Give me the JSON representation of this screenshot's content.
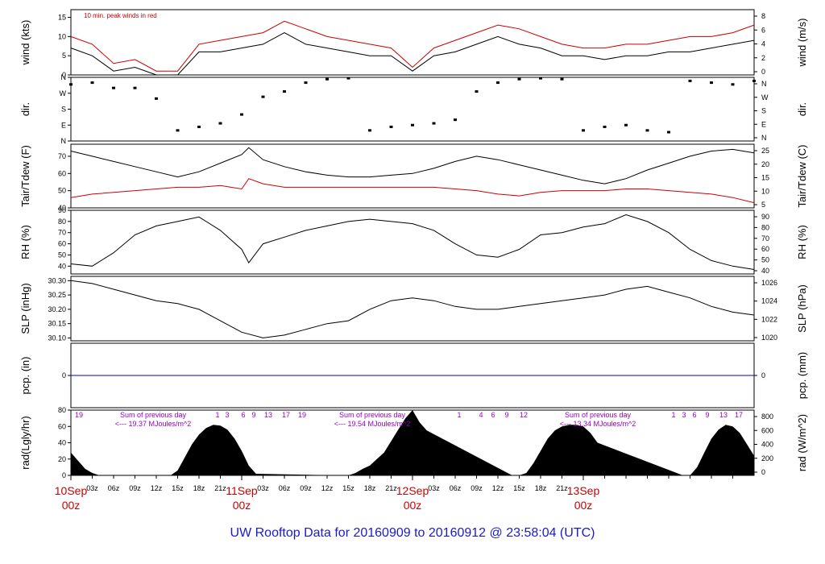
{
  "chart_data": {
    "type": "line",
    "title": "UW Rooftop Data for 20160909  to  20160912 @ 23:58:04  (UTC)",
    "x_ticks": [
      "03z",
      "06z",
      "09z",
      "12z",
      "15z",
      "18z",
      "21z",
      "03z",
      "06z",
      "09z",
      "12z",
      "15z",
      "18z",
      "21z",
      "03z",
      "06z",
      "09z",
      "12z",
      "15z",
      "18z",
      "21z"
    ],
    "date_labels": [
      {
        "day": "10Sep",
        "hour": "00z"
      },
      {
        "day": "11Sep",
        "hour": "00z"
      },
      {
        "day": "12Sep",
        "hour": "00z"
      },
      {
        "day": "13Sep",
        "hour": "00z"
      }
    ],
    "x_range_hours": [
      0,
      96
    ],
    "panels": [
      {
        "id": "wind",
        "ylabel_left": "wind (kts)",
        "ylabel_right": "wind (m/s)",
        "ylim": [
          0,
          17
        ],
        "left_ticks": [
          "0",
          "5",
          "10",
          "15"
        ],
        "right_ticks": [
          "0",
          "2",
          "4",
          "6",
          "8"
        ],
        "note": "10 min. peak winds in red",
        "series": [
          {
            "hours": [
              0,
              3,
              6,
              9,
              12,
              15,
              18,
              21,
              24,
              27,
              30,
              33,
              36,
              39,
              42,
              45,
              48,
              51,
              54,
              57,
              60,
              63,
              66,
              69,
              72,
              75,
              78,
              81,
              84,
              87,
              90,
              93,
              96
            ],
            "values": [
              7,
              5,
              1,
              2,
              0,
              0,
              6,
              6,
              7,
              8,
              11,
              8,
              7,
              6,
              5,
              5,
              1,
              5,
              6,
              8,
              10,
              8,
              7,
              5,
              5,
              4,
              5,
              5,
              6,
              6,
              7,
              8,
              9
            ],
            "color": "#000000"
          },
          {
            "hours": [
              0,
              3,
              6,
              9,
              12,
              15,
              18,
              21,
              24,
              27,
              30,
              33,
              36,
              39,
              42,
              45,
              48,
              51,
              54,
              57,
              60,
              63,
              66,
              69,
              72,
              75,
              78,
              81,
              84,
              87,
              90,
              93,
              96
            ],
            "values": [
              10,
              8,
              3,
              4,
              1,
              1,
              8,
              9,
              10,
              11,
              14,
              12,
              10,
              9,
              8,
              7,
              2,
              7,
              9,
              11,
              13,
              12,
              10,
              8,
              7,
              7,
              8,
              8,
              9,
              10,
              10,
              11,
              13
            ],
            "color": "#cc0000"
          }
        ]
      },
      {
        "id": "dir",
        "ylabel_left": "dir.",
        "ylabel_right": "dir.",
        "ylim": [
          0,
          360
        ],
        "left_ticks": [
          "N",
          "E",
          "S",
          "W",
          "N"
        ],
        "right_ticks": [
          "N",
          "E",
          "S",
          "W",
          "N"
        ],
        "series": [
          {
            "hours": [
              0,
              3,
              6,
              9,
              12,
              15,
              18,
              21,
              24,
              27,
              30,
              33,
              36,
              39,
              42,
              45,
              48,
              51,
              54,
              57,
              60,
              63,
              66,
              69,
              72,
              75,
              78,
              81,
              84,
              87,
              90,
              93,
              96
            ],
            "values": [
              320,
              330,
              300,
              300,
              240,
              60,
              80,
              100,
              150,
              250,
              280,
              330,
              350,
              355,
              60,
              80,
              90,
              100,
              120,
              280,
              330,
              350,
              355,
              350,
              60,
              80,
              90,
              60,
              50,
              340,
              330,
              320,
              340
            ],
            "color": "#000000",
            "style": "dots"
          }
        ]
      },
      {
        "id": "temp",
        "ylabel_left": "Tair/Tdew (F)",
        "ylabel_right": "Tair/Tdew (C)",
        "ylim": [
          40,
          77
        ],
        "left_ticks": [
          "40",
          "50",
          "60",
          "70"
        ],
        "right_ticks": [
          "5",
          "10",
          "15",
          "20",
          "25"
        ],
        "series": [
          {
            "hours": [
              0,
              3,
              6,
              9,
              12,
              15,
              18,
              21,
              24,
              25,
              27,
              30,
              33,
              36,
              39,
              42,
              45,
              48,
              51,
              54,
              57,
              60,
              63,
              66,
              69,
              72,
              75,
              78,
              81,
              84,
              87,
              90,
              93,
              96
            ],
            "values": [
              73,
              70,
              67,
              64,
              61,
              58,
              61,
              66,
              71,
              75,
              68,
              64,
              61,
              59,
              58,
              58,
              59,
              60,
              63,
              67,
              70,
              68,
              65,
              62,
              59,
              56,
              54,
              57,
              62,
              66,
              70,
              73,
              74,
              72
            ],
            "color": "#000000"
          },
          {
            "hours": [
              0,
              3,
              6,
              9,
              12,
              15,
              18,
              21,
              24,
              25,
              27,
              30,
              33,
              36,
              39,
              42,
              45,
              48,
              51,
              54,
              57,
              60,
              63,
              66,
              69,
              72,
              75,
              78,
              81,
              84,
              87,
              90,
              93,
              96
            ],
            "values": [
              46,
              48,
              49,
              50,
              51,
              52,
              52,
              53,
              51,
              57,
              54,
              52,
              52,
              52,
              52,
              52,
              52,
              52,
              52,
              51,
              50,
              48,
              47,
              49,
              50,
              50,
              50,
              51,
              51,
              50,
              49,
              48,
              46,
              43
            ],
            "color": "#cc0000"
          }
        ]
      },
      {
        "id": "rh",
        "ylabel_left": "RH (%)",
        "ylabel_right": "RH (%)",
        "ylim": [
          33,
          90
        ],
        "left_ticks": [
          "40",
          "50",
          "60",
          "70",
          "80",
          "90"
        ],
        "right_ticks": [
          "40",
          "50",
          "60",
          "70",
          "80",
          "90"
        ],
        "series": [
          {
            "hours": [
              0,
              3,
              6,
              9,
              12,
              15,
              18,
              21,
              24,
              25,
              27,
              30,
              33,
              36,
              39,
              42,
              45,
              48,
              51,
              54,
              57,
              60,
              63,
              66,
              69,
              72,
              75,
              78,
              81,
              84,
              87,
              90,
              93,
              96
            ],
            "values": [
              42,
              40,
              52,
              68,
              76,
              80,
              84,
              72,
              55,
              43,
              60,
              66,
              72,
              76,
              80,
              82,
              80,
              78,
              72,
              60,
              50,
              48,
              55,
              68,
              70,
              75,
              78,
              86,
              80,
              70,
              55,
              45,
              40,
              37
            ],
            "color": "#000000"
          }
        ]
      },
      {
        "id": "slp",
        "ylabel_left": "SLP (inHg)",
        "ylabel_right": "SLP (hPa)",
        "ylim": [
          30.09,
          30.315
        ],
        "left_ticks": [
          "30.10",
          "30.15",
          "30.20",
          "30.25",
          "30.30"
        ],
        "right_ticks": [
          "1020",
          "1022",
          "1024",
          "1026"
        ],
        "series": [
          {
            "hours": [
              0,
              3,
              6,
              9,
              12,
              15,
              18,
              21,
              24,
              27,
              30,
              33,
              36,
              39,
              42,
              45,
              48,
              51,
              54,
              57,
              60,
              63,
              66,
              69,
              72,
              75,
              78,
              81,
              84,
              87,
              90,
              93,
              96
            ],
            "values": [
              30.3,
              30.29,
              30.27,
              30.25,
              30.23,
              30.22,
              30.2,
              30.16,
              30.12,
              30.1,
              30.11,
              30.13,
              30.15,
              30.16,
              30.2,
              30.23,
              30.24,
              30.23,
              30.21,
              30.2,
              30.2,
              30.21,
              30.22,
              30.23,
              30.24,
              30.25,
              30.27,
              30.28,
              30.26,
              30.24,
              30.21,
              30.19,
              30.18
            ],
            "color": "#000000"
          }
        ]
      },
      {
        "id": "pcp",
        "ylabel_left": "pcp. (in)",
        "ylabel_right": "pcp. (mm)",
        "ylim": [
          -1,
          1
        ],
        "left_ticks": [
          "0"
        ],
        "right_ticks": [
          "0"
        ],
        "series": [
          {
            "hours": [
              0,
              96
            ],
            "values": [
              0,
              0
            ],
            "color": "#0000cc"
          }
        ]
      },
      {
        "id": "rad",
        "ylabel_left": "rad(Lgly/hr)",
        "ylabel_right": "rad (W/m^2)",
        "ylim": [
          0,
          80
        ],
        "left_ticks": [
          "0",
          "20",
          "40",
          "60",
          "80"
        ],
        "right_ticks": [
          "0",
          "200",
          "400",
          "600",
          "800"
        ],
        "series": [
          {
            "hours": [
              0,
              1,
              2,
              3,
              4,
              14,
              15,
              16,
              17,
              18,
              19,
              20,
              21,
              22,
              23,
              24,
              25,
              26,
              38,
              39,
              40,
              41,
              42,
              43,
              44,
              45,
              46,
              47,
              48,
              49,
              50,
              62,
              63,
              64,
              65,
              66,
              67,
              68,
              69,
              70,
              71,
              72,
              73,
              74,
              86,
              87,
              88,
              89,
              90,
              91,
              92,
              93,
              94,
              95,
              96
            ],
            "values": [
              28,
              18,
              8,
              3,
              0,
              0,
              6,
              22,
              38,
              50,
              58,
              62,
              61,
              56,
              45,
              30,
              12,
              2,
              0,
              0,
              3,
              8,
              12,
              20,
              28,
              42,
              56,
              70,
              80,
              65,
              55,
              0,
              0,
              3,
              15,
              30,
              45,
              55,
              60,
              62,
              62,
              60,
              52,
              40,
              0,
              0,
              10,
              28,
              45,
              56,
              62,
              60,
              52,
              38,
              24
            ],
            "color": "#000000",
            "style": "area"
          }
        ],
        "hour_ticks": [
          "19",
          "1",
          "3",
          "6",
          "9",
          "13",
          "17",
          "19",
          "1",
          "4",
          "6",
          "9",
          "12",
          "1",
          "3",
          "6",
          "9",
          "13",
          "17"
        ],
        "sum_notes": [
          {
            "line1": "Sum of previous day",
            "line2": "<--- 19.37 MJoules/m^2"
          },
          {
            "line1": "Sum of previous day",
            "line2": "<--- 19.54 MJoules/m^2"
          },
          {
            "line1": "Sum of previous day",
            "line2": "<--- 13.34 MJoules/m^2"
          }
        ]
      }
    ]
  }
}
